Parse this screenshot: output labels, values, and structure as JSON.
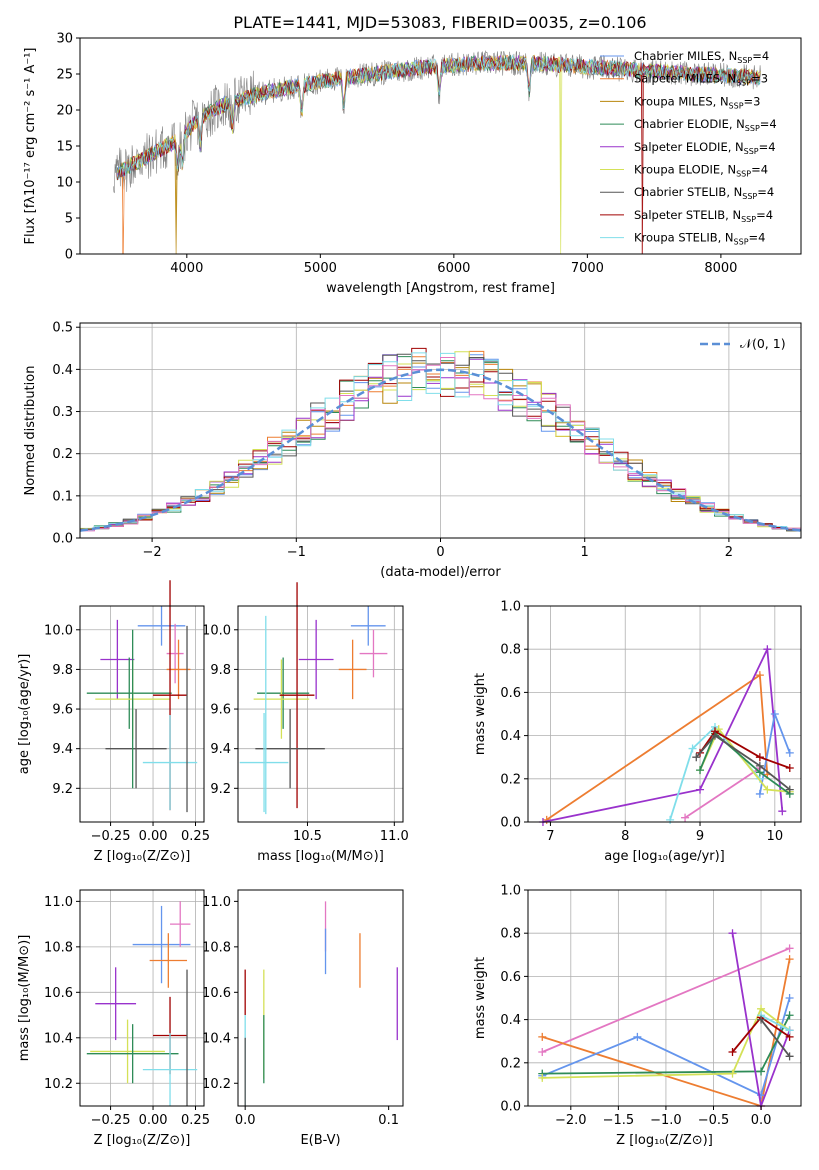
{
  "figure": {
    "title": "PLATE=1441, MJD=53083, FIBERID=0035, z=0.106"
  },
  "colors": {
    "chabrier_miles": "#6495ed",
    "salpeter_miles": "#ed7d31",
    "kroupa_miles": "#b8860b",
    "chabrier_elodie": "#2e8b57",
    "salpeter_elodie": "#9932cc",
    "kroupa_elodie": "#d4e157",
    "chabrier_stelib": "#555555",
    "salpeter_stelib": "#a00000",
    "kroupa_stelib": "#80deea",
    "pink": "#e377c2",
    "spectrum": "#808080",
    "normal_curve": "#5b8fd6",
    "grid": "#b0b0b0"
  },
  "chart_data": [
    {
      "id": "spectrum",
      "type": "line",
      "xlabel": "wavelength [Angstrom, rest frame]",
      "ylabel": "Flux [fλ10⁻¹⁷ erg cm⁻² s⁻¹ A⁻¹]",
      "xlim": [
        3200,
        8600
      ],
      "ylim": [
        0,
        30
      ],
      "xticks": [
        4000,
        5000,
        6000,
        7000,
        8000
      ],
      "yticks": [
        0,
        5,
        10,
        15,
        20,
        25,
        30
      ],
      "grid": false,
      "legend_position": "top-right",
      "continuum": {
        "x": [
          3450,
          3600,
          3800,
          3950,
          4100,
          4300,
          4600,
          5000,
          5400,
          5800,
          6200,
          6600,
          7000,
          7400,
          7800,
          8300
        ],
        "y": [
          11,
          12.5,
          14.5,
          16,
          19,
          21,
          22.5,
          24,
          25,
          26,
          26.5,
          26.5,
          26,
          25.5,
          25,
          24.5
        ]
      },
      "series": [
        {
          "name": "Chabrier MILES, N_SSP=4",
          "label_main": "Chabrier MILES, N",
          "label_sub": "SSP",
          "label_tail": "=4",
          "color_key": "chabrier_miles",
          "dips": []
        },
        {
          "name": "Salpeter MILES, N_SSP=3",
          "label_main": "Salpeter MILES, N",
          "label_sub": "SSP",
          "label_tail": "=3",
          "color_key": "salpeter_miles",
          "dips": [
            3520
          ]
        },
        {
          "name": "Kroupa MILES, N_SSP=3",
          "label_main": "Kroupa MILES, N",
          "label_sub": "SSP",
          "label_tail": "=3",
          "color_key": "kroupa_miles",
          "dips": [
            3920
          ]
        },
        {
          "name": "Chabrier ELODIE, N_SSP=4",
          "label_main": "Chabrier ELODIE, N",
          "label_sub": "SSP",
          "label_tail": "=4",
          "color_key": "chabrier_elodie",
          "dips": []
        },
        {
          "name": "Salpeter ELODIE, N_SSP=4",
          "label_main": "Salpeter ELODIE, N",
          "label_sub": "SSP",
          "label_tail": "=4",
          "color_key": "salpeter_elodie",
          "dips": []
        },
        {
          "name": "Kroupa ELODIE, N_SSP=4",
          "label_main": "Kroupa ELODIE, N",
          "label_sub": "SSP",
          "label_tail": "=4",
          "color_key": "kroupa_elodie",
          "dips": [
            6800
          ]
        },
        {
          "name": "Chabrier STELIB, N_SSP=4",
          "label_main": "Chabrier STELIB, N",
          "label_sub": "SSP",
          "label_tail": "=4",
          "color_key": "chabrier_stelib",
          "dips": []
        },
        {
          "name": "Salpeter STELIB, N_SSP=4",
          "label_main": "Salpeter STELIB, N",
          "label_sub": "SSP",
          "label_tail": "=4",
          "color_key": "salpeter_stelib",
          "dips": [
            7410
          ]
        },
        {
          "name": "Kroupa STELIB, N_SSP=4",
          "label_main": "Kroupa STELIB, N",
          "label_sub": "SSP",
          "label_tail": "=4",
          "color_key": "kroupa_stelib",
          "dips": []
        }
      ]
    },
    {
      "id": "residuals",
      "type": "step",
      "xlabel": "(data-model)/error",
      "ylabel": "Normed distribution",
      "xlim": [
        -2.5,
        2.5
      ],
      "ylim": [
        0,
        0.51
      ],
      "xticks": [
        -2,
        -1,
        0,
        1,
        2
      ],
      "yticks": [
        0.0,
        0.1,
        0.2,
        0.3,
        0.4,
        0.5
      ],
      "grid": true,
      "legend_position": "top-right",
      "normal_label": "𝒩(0, 1)",
      "bin_width": 0.1
    },
    {
      "id": "z_age",
      "type": "errorbar",
      "xlabel": "Z [log₁₀(Z/Z⊙)]",
      "ylabel": "age  [log₁₀(age/yr)]",
      "xlim": [
        -0.43,
        0.3
      ],
      "ylim": [
        9.03,
        10.12
      ],
      "xticks": [
        -0.25,
        0.0,
        0.25
      ],
      "yticks": [
        9.2,
        9.4,
        9.6,
        9.8,
        10.0
      ],
      "grid": true,
      "points": [
        {
          "color_key": "chabrier_miles",
          "x": 0.05,
          "xerr": 0.14,
          "y": 10.02,
          "yerr": 0.1
        },
        {
          "color_key": "pink",
          "x": 0.13,
          "xerr": 0.05,
          "y": 9.88,
          "yerr": 0.15
        },
        {
          "color_key": "salpeter_miles",
          "x": 0.15,
          "xerr": 0.07,
          "y": 9.8,
          "yerr": 0.15
        },
        {
          "color_key": "salpeter_elodie",
          "x": -0.21,
          "xerr": 0.1,
          "y": 9.85,
          "yerr": 0.2
        },
        {
          "color_key": "chabrier_elodie",
          "x": -0.14,
          "xerr": 0.25,
          "y": 9.68,
          "yerr": 0.18
        },
        {
          "color_key": "kroupa_elodie",
          "x": -0.12,
          "xerr": 0.22,
          "y": 9.65,
          "yerr": 0.2
        },
        {
          "color_key": "salpeter_stelib",
          "x": 0.1,
          "xerr": 0.1,
          "y": 9.67,
          "yerr": 0.58
        },
        {
          "color_key": "chabrier_stelib",
          "x": -0.1,
          "xerr": 0.18,
          "y": 9.4,
          "yerr": 0.2
        },
        {
          "color_key": "kroupa_stelib",
          "x": 0.1,
          "xerr": 0.16,
          "y": 9.33,
          "yerr": 0.24
        },
        {
          "color_key": "chabrier_stelib",
          "x": 0.2,
          "xerr": 0.0,
          "y": 9.55,
          "yerr": 0.47
        },
        {
          "color_key": "chabrier_elodie",
          "x": -0.12,
          "xerr": 0.0,
          "y": 9.6,
          "yerr": 0.4
        }
      ]
    },
    {
      "id": "mass_age",
      "type": "errorbar",
      "xlabel": "mass [log₁₀(M/M⊙)]",
      "ylabel": "",
      "xlim": [
        10.1,
        11.05
      ],
      "ylim": [
        9.03,
        10.12
      ],
      "xticks": [
        10.5,
        11.0
      ],
      "yticks": [
        9.2,
        9.4,
        9.6,
        9.8,
        10.0
      ],
      "grid": true,
      "points": [
        {
          "color_key": "chabrier_miles",
          "x": 10.85,
          "xerr": 0.1,
          "y": 10.02,
          "yerr": 0.1
        },
        {
          "color_key": "pink",
          "x": 10.88,
          "xerr": 0.08,
          "y": 9.88,
          "yerr": 0.12
        },
        {
          "color_key": "salpeter_miles",
          "x": 10.76,
          "xerr": 0.08,
          "y": 9.8,
          "yerr": 0.15
        },
        {
          "color_key": "salpeter_elodie",
          "x": 10.55,
          "xerr": 0.1,
          "y": 9.85,
          "yerr": 0.2
        },
        {
          "color_key": "chabrier_elodie",
          "x": 10.36,
          "xerr": 0.15,
          "y": 9.68,
          "yerr": 0.18
        },
        {
          "color_key": "kroupa_elodie",
          "x": 10.35,
          "xerr": 0.16,
          "y": 9.65,
          "yerr": 0.2
        },
        {
          "color_key": "salpeter_stelib",
          "x": 10.44,
          "xerr": 0.1,
          "y": 9.67,
          "yerr": 0.57
        },
        {
          "color_key": "chabrier_stelib",
          "x": 10.4,
          "xerr": 0.2,
          "y": 9.4,
          "yerr": 0.2
        },
        {
          "color_key": "kroupa_stelib",
          "x": 10.25,
          "xerr": 0.14,
          "y": 9.33,
          "yerr": 0.25
        },
        {
          "color_key": "kroupa_stelib",
          "x": 10.26,
          "xerr": 0.0,
          "y": 9.57,
          "yerr": 0.5
        }
      ]
    },
    {
      "id": "age_weight",
      "type": "line",
      "xlabel": "age  [log₁₀(age/yr)]",
      "ylabel": "mass weight",
      "xlim": [
        6.7,
        10.35
      ],
      "ylim": [
        0,
        1.0
      ],
      "xticks": [
        7,
        8,
        9,
        10
      ],
      "yticks": [
        0.0,
        0.2,
        0.4,
        0.6,
        0.8,
        1.0
      ],
      "grid": true,
      "series": [
        {
          "color_key": "salpeter_miles",
          "x": [
            6.95,
            9.8,
            9.9
          ],
          "y": [
            0.01,
            0.68,
            0.22
          ]
        },
        {
          "color_key": "salpeter_elodie",
          "x": [
            6.9,
            9.0,
            9.9,
            10.1
          ],
          "y": [
            0.0,
            0.15,
            0.8,
            0.05
          ]
        },
        {
          "color_key": "chabrier_miles",
          "x": [
            9.8,
            10.0,
            10.2
          ],
          "y": [
            0.13,
            0.5,
            0.32
          ]
        },
        {
          "color_key": "pink",
          "x": [
            8.8,
            9.8
          ],
          "y": [
            0.02,
            0.25
          ]
        },
        {
          "color_key": "kroupa_stelib",
          "x": [
            8.6,
            8.9,
            9.2,
            9.8
          ],
          "y": [
            0.01,
            0.34,
            0.44,
            0.2
          ]
        },
        {
          "color_key": "kroupa_elodie",
          "x": [
            9.0,
            9.25,
            9.9,
            10.2
          ],
          "y": [
            0.24,
            0.43,
            0.15,
            0.14
          ]
        },
        {
          "color_key": "chabrier_elodie",
          "x": [
            9.0,
            9.2,
            9.8,
            10.2
          ],
          "y": [
            0.24,
            0.41,
            0.23,
            0.13
          ]
        },
        {
          "color_key": "salpeter_stelib",
          "x": [
            9.0,
            9.2,
            9.8,
            10.2
          ],
          "y": [
            0.32,
            0.42,
            0.3,
            0.25
          ]
        },
        {
          "color_key": "chabrier_stelib",
          "x": [
            8.95,
            9.2,
            9.8,
            10.2
          ],
          "y": [
            0.3,
            0.4,
            0.26,
            0.15
          ]
        }
      ]
    },
    {
      "id": "z_mass",
      "type": "errorbar",
      "xlabel": "Z [log₁₀(Z/Z⊙)]",
      "ylabel": "mass [log₁₀(M/M⊙)]",
      "xlim": [
        -0.43,
        0.3
      ],
      "ylim": [
        10.1,
        11.05
      ],
      "xticks": [
        -0.25,
        0.0,
        0.25
      ],
      "yticks": [
        10.2,
        10.4,
        10.6,
        10.8,
        11.0
      ],
      "grid": true,
      "points": [
        {
          "color_key": "chabrier_miles",
          "x": 0.05,
          "xerr": 0.17,
          "y": 10.81,
          "yerr": 0.17
        },
        {
          "color_key": "pink",
          "x": 0.16,
          "xerr": 0.06,
          "y": 10.9,
          "yerr": 0.1
        },
        {
          "color_key": "salpeter_miles",
          "x": 0.09,
          "xerr": 0.11,
          "y": 10.74,
          "yerr": 0.12
        },
        {
          "color_key": "salpeter_elodie",
          "x": -0.22,
          "xerr": 0.12,
          "y": 10.55,
          "yerr": 0.16
        },
        {
          "color_key": "salpeter_stelib",
          "x": 0.1,
          "xerr": 0.1,
          "y": 10.41,
          "yerr": 0.17
        },
        {
          "color_key": "kroupa_elodie",
          "x": -0.15,
          "xerr": 0.22,
          "y": 10.34,
          "yerr": 0.14
        },
        {
          "color_key": "chabrier_elodie",
          "x": -0.12,
          "xerr": 0.27,
          "y": 10.33,
          "yerr": 0.13
        },
        {
          "color_key": "kroupa_stelib",
          "x": 0.1,
          "xerr": 0.16,
          "y": 10.26,
          "yerr": 0.16
        },
        {
          "color_key": "chabrier_stelib",
          "x": 0.2,
          "xerr": 0.0,
          "y": 10.4,
          "yerr": 0.3
        }
      ]
    },
    {
      "id": "ebv_mass",
      "type": "errorbar",
      "xlabel": "E(B-V)",
      "ylabel": "",
      "xlim": [
        -0.005,
        0.11
      ],
      "ylim": [
        10.1,
        11.05
      ],
      "xticks": [
        0.0,
        0.1
      ],
      "yticks": [
        10.2,
        10.4,
        10.6,
        10.8,
        11.0
      ],
      "grid": false,
      "points": [
        {
          "color_key": "pink",
          "x": 0.056,
          "xerr": 0.0,
          "y": 10.89,
          "yerr": 0.11
        },
        {
          "color_key": "chabrier_miles",
          "x": 0.056,
          "xerr": 0.0,
          "y": 10.78,
          "yerr": 0.1
        },
        {
          "color_key": "salpeter_miles",
          "x": 0.08,
          "xerr": 0.0,
          "y": 10.74,
          "yerr": 0.12
        },
        {
          "color_key": "salpeter_elodie",
          "x": 0.106,
          "xerr": 0.0,
          "y": 10.55,
          "yerr": 0.16
        },
        {
          "color_key": "salpeter_stelib",
          "x": 0.0,
          "xerr": 0.0,
          "y": 10.6,
          "yerr": 0.1
        },
        {
          "color_key": "kroupa_elodie",
          "x": 0.013,
          "xerr": 0.0,
          "y": 10.46,
          "yerr": 0.24
        },
        {
          "color_key": "chabrier_elodie",
          "x": 0.013,
          "xerr": 0.0,
          "y": 10.35,
          "yerr": 0.15
        },
        {
          "color_key": "kroupa_stelib",
          "x": 0.0,
          "xerr": 0.0,
          "y": 10.3,
          "yerr": 0.2
        },
        {
          "color_key": "chabrier_stelib",
          "x": 0.0,
          "xerr": 0.0,
          "y": 10.25,
          "yerr": 0.15
        }
      ]
    },
    {
      "id": "z_weight",
      "type": "line",
      "xlabel": "Z [log₁₀(Z/Z⊙)]",
      "ylabel": "mass weight",
      "xlim": [
        -2.45,
        0.42
      ],
      "ylim": [
        0,
        1.0
      ],
      "xticks": [
        -2.0,
        -1.5,
        -1.0,
        -0.5,
        0.0
      ],
      "yticks": [
        0.0,
        0.2,
        0.4,
        0.6,
        0.8,
        1.0
      ],
      "grid": true,
      "series": [
        {
          "color_key": "pink",
          "x": [
            -2.3,
            0.3
          ],
          "y": [
            0.25,
            0.73
          ]
        },
        {
          "color_key": "salpeter_miles",
          "x": [
            -2.3,
            0.0,
            0.3
          ],
          "y": [
            0.32,
            0.0,
            0.68
          ]
        },
        {
          "color_key": "chabrier_miles",
          "x": [
            -2.3,
            -1.3,
            0.0,
            0.3
          ],
          "y": [
            0.14,
            0.32,
            0.05,
            0.5
          ]
        },
        {
          "color_key": "chabrier_elodie",
          "x": [
            -2.3,
            0.0,
            0.3
          ],
          "y": [
            0.15,
            0.16,
            0.42
          ]
        },
        {
          "color_key": "kroupa_elodie",
          "x": [
            -2.3,
            -0.3,
            0.0,
            0.3
          ],
          "y": [
            0.13,
            0.15,
            0.45,
            0.35
          ]
        },
        {
          "color_key": "salpeter_elodie",
          "x": [
            -0.3,
            0.0,
            0.3
          ],
          "y": [
            0.8,
            0.0,
            0.35
          ]
        },
        {
          "color_key": "salpeter_stelib",
          "x": [
            -0.3,
            0.0,
            0.3
          ],
          "y": [
            0.25,
            0.41,
            0.32
          ]
        },
        {
          "color_key": "kroupa_stelib",
          "x": [
            0.0,
            0.3
          ],
          "y": [
            0.42,
            0.35
          ]
        },
        {
          "color_key": "chabrier_stelib",
          "x": [
            0.0,
            0.3
          ],
          "y": [
            0.4,
            0.23
          ]
        }
      ]
    }
  ]
}
